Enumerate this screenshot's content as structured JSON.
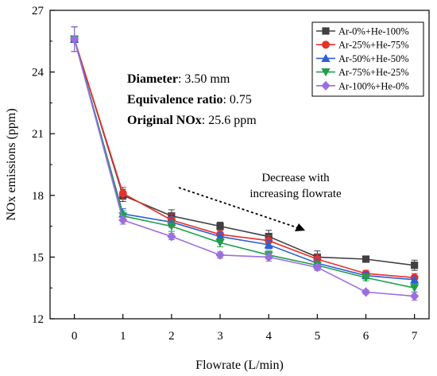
{
  "chart_data": {
    "type": "line",
    "xlabel": "Flowrate (L/min)",
    "ylabel": "NOx emissions (ppm)",
    "xlim": [
      -0.5,
      7.3
    ],
    "ylim": [
      12,
      27
    ],
    "x_ticks": [
      0,
      1,
      2,
      3,
      4,
      5,
      6,
      7
    ],
    "y_ticks": [
      12,
      15,
      18,
      21,
      24,
      27
    ],
    "x_tick_labels": [
      "0",
      "1",
      "2",
      "3",
      "4",
      "5",
      "6",
      "7"
    ],
    "y_tick_labels": [
      "12",
      "15",
      "18",
      "21",
      "24",
      "27"
    ],
    "grid": false,
    "legend_position": "top-right",
    "x": [
      0,
      1,
      2,
      3,
      4,
      5,
      6,
      7
    ],
    "series": [
      {
        "name": "Ar-0%+He-100%",
        "color": "#404040",
        "marker": "square",
        "values": [
          25.6,
          18.0,
          17.0,
          16.5,
          16.0,
          15.0,
          14.9,
          14.6
        ],
        "errors": [
          0.6,
          0.3,
          0.3,
          0.2,
          0.3,
          0.3,
          0.15,
          0.25
        ]
      },
      {
        "name": "Ar-25%+He-75%",
        "color": "#e8302a",
        "marker": "circle",
        "values": [
          25.6,
          18.1,
          16.8,
          16.1,
          15.8,
          14.9,
          14.2,
          14.0
        ],
        "errors": [
          0.6,
          0.3,
          0.3,
          0.2,
          0.25,
          0.25,
          0.15,
          0.2
        ]
      },
      {
        "name": "Ar-50%+He-50%",
        "color": "#2d5fd6",
        "marker": "triangle-up",
        "values": [
          25.6,
          17.1,
          16.7,
          16.0,
          15.6,
          14.7,
          14.1,
          13.9
        ],
        "errors": [
          0.6,
          0.25,
          0.25,
          0.2,
          0.2,
          0.2,
          0.15,
          0.2
        ]
      },
      {
        "name": "Ar-75%+He-25%",
        "color": "#1f9e4a",
        "marker": "triangle-down",
        "values": [
          25.6,
          17.0,
          16.5,
          15.7,
          15.1,
          14.6,
          14.0,
          13.5
        ],
        "errors": [
          0.6,
          0.25,
          0.25,
          0.2,
          0.2,
          0.2,
          0.15,
          0.2
        ]
      },
      {
        "name": "Ar-100%+He-0%",
        "color": "#9b6ee0",
        "marker": "diamond",
        "values": [
          25.6,
          16.8,
          16.0,
          15.1,
          15.0,
          14.5,
          13.3,
          13.1
        ],
        "errors": [
          0.6,
          0.2,
          0.15,
          0.15,
          0.2,
          0.15,
          0.1,
          0.2
        ]
      }
    ],
    "annotations": {
      "diameter_label": "Diameter",
      "diameter_value": ": 3.50 mm",
      "equivalence_label": "Equivalence ratio",
      "equivalence_value": ": 0.75",
      "original_label": "Original NOx",
      "original_value": ": 25.6 ppm",
      "trend_line1": "Decrease with",
      "trend_line2": "increasing flowrate"
    }
  }
}
